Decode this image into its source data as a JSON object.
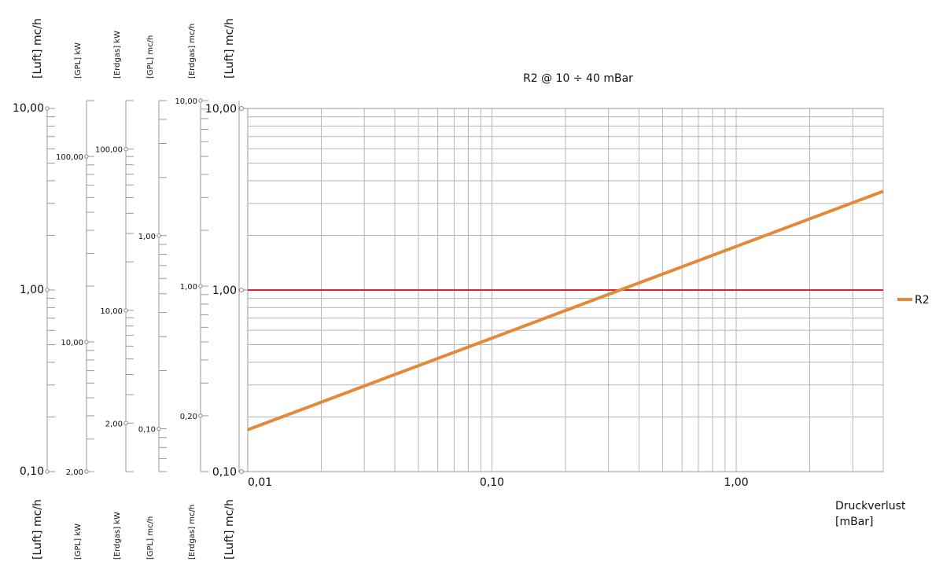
{
  "chart_data": {
    "type": "line",
    "title": "R2 @ 10 ÷ 40 mBar",
    "xlabel": [
      "Druckverlust",
      "[mBar]"
    ],
    "x_scale": "log",
    "xlim": [
      0.01,
      4
    ],
    "x_ticks": [
      "0,01",
      "0,10",
      "1,00"
    ],
    "y_scale": "log",
    "ylim": [
      0.1,
      10
    ],
    "y_ticks": [
      "0,10",
      "1,00",
      "10,00"
    ],
    "y_axis_label": "[Luft] mc/h",
    "reference_line": {
      "y": 1.0,
      "color": "#e0202a"
    },
    "series": [
      {
        "name": "R2",
        "color": "#e08a3a",
        "x": [
          0.01,
          4
        ],
        "y": [
          0.17,
          3.5
        ]
      }
    ],
    "legend_position": "right",
    "grid": true,
    "side_scales": [
      {
        "label": "[Luft] mc/h",
        "ticks": [
          "0,10",
          "1,00",
          "10,00"
        ]
      },
      {
        "label": "[GPL] kW",
        "ticks": [
          "2,00",
          "10,00",
          "100,00"
        ]
      },
      {
        "label": "[Erdgas] kW",
        "ticks": [
          "2,00",
          "10,00",
          "100,00"
        ]
      },
      {
        "label": "[GPL] mc/h",
        "ticks": [
          "0,10",
          "1,00"
        ]
      },
      {
        "label": "[Erdgas] mc/h",
        "ticks": [
          "0,20",
          "1,00",
          "10,00"
        ]
      },
      {
        "label": "[Luft] mc/h",
        "ticks": []
      }
    ]
  }
}
